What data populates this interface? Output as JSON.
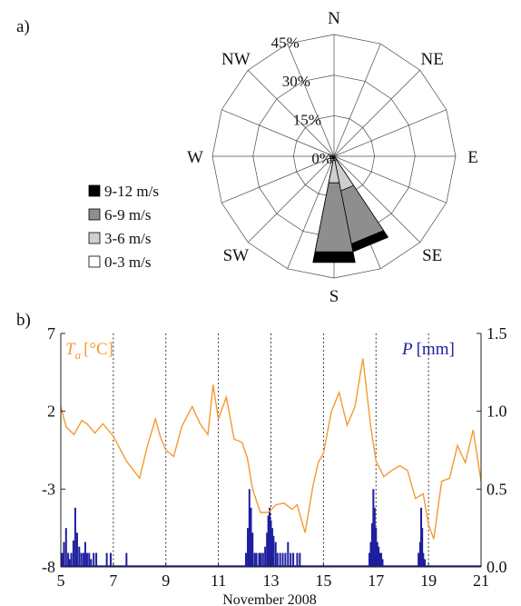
{
  "colors": {
    "temperature": "#F39A30",
    "precipitation": "#1E1E9E",
    "speed_0_3": "#FFFFFF",
    "speed_3_6": "#CFCFCF",
    "speed_6_9": "#8E8E8E",
    "speed_9_12": "#000000"
  },
  "chart_data": [
    {
      "type": "windrose",
      "panel_label": "a)",
      "directions": [
        "N",
        "NNE",
        "NE",
        "ENE",
        "E",
        "ESE",
        "SE",
        "SSE",
        "S",
        "SSW",
        "SW",
        "WSW",
        "W",
        "WNW",
        "NW",
        "NNW"
      ],
      "direction_labels": [
        {
          "dir": "N",
          "text": "N"
        },
        {
          "dir": "NE",
          "text": "NE"
        },
        {
          "dir": "E",
          "text": "E"
        },
        {
          "dir": "SE",
          "text": "SE"
        },
        {
          "dir": "S",
          "text": "S"
        },
        {
          "dir": "SW",
          "text": "SW"
        },
        {
          "dir": "W",
          "text": "W"
        },
        {
          "dir": "NW",
          "text": "NW"
        }
      ],
      "radial_max": 45,
      "radial_ticks": [
        {
          "value": 0,
          "label": "0%"
        },
        {
          "value": 15,
          "label": "15%"
        },
        {
          "value": 30,
          "label": "30%"
        },
        {
          "value": 45,
          "label": "45%"
        }
      ],
      "legend": [
        {
          "key": "speed_9_12",
          "label": "9-12 m/s"
        },
        {
          "key": "speed_6_9",
          "label": "6-9 m/s"
        },
        {
          "key": "speed_3_6",
          "label": "3-6 m/s"
        },
        {
          "key": "speed_0_3",
          "label": "0-3 m/s"
        }
      ],
      "series_cumulative_percent": {
        "speed_0_3": {
          "SSE": 1.5,
          "S": 1.5,
          "SW": 0.5,
          "WSW": 0.5,
          "W": 0.5
        },
        "speed_3_6": {
          "SSE": 13,
          "S": 10,
          "SW": 1,
          "WSW": 1.5,
          "W": 1.5
        },
        "speed_6_9": {
          "SSE": 33,
          "S": 36,
          "SW": 1,
          "WSW": 1.5,
          "W": 1.5
        },
        "speed_9_12": {
          "SSE": 36,
          "S": 40,
          "SW": 1,
          "WSW": 1.5,
          "W": 1.5
        }
      }
    },
    {
      "type": "line",
      "panel_label": "b)",
      "xlabel": "November 2008",
      "x_ticks": [
        5,
        7,
        9,
        11,
        13,
        15,
        17,
        19,
        21
      ],
      "x_range": [
        5,
        21
      ],
      "dotted_vlines": [
        7,
        9,
        11,
        13,
        15,
        17,
        19
      ],
      "y_left": {
        "label_symbol": "T",
        "label_sub": "a",
        "label_unit": "[°C]",
        "range": [
          -8,
          7
        ],
        "ticks": [
          7,
          2,
          -3,
          -8
        ],
        "tick_labels": [
          "7",
          "2",
          "-3",
          "-8"
        ]
      },
      "y_right": {
        "label_symbol": "P",
        "label_unit": "[mm]",
        "range": [
          0,
          1.5
        ],
        "ticks": [
          1.5,
          1.0,
          0.5,
          0.0
        ],
        "tick_labels": [
          "1.5",
          "1.0",
          "0.5",
          "0.0"
        ]
      },
      "series": [
        {
          "key": "temperature",
          "axis": "left",
          "x": [
            5.0,
            5.2,
            5.5,
            5.8,
            6.0,
            6.3,
            6.6,
            7.0,
            7.5,
            8.0,
            8.3,
            8.6,
            8.8,
            9.0,
            9.3,
            9.6,
            10.0,
            10.3,
            10.6,
            10.8,
            11.0,
            11.3,
            11.6,
            11.9,
            12.1,
            12.3,
            12.6,
            12.9,
            13.2,
            13.5,
            13.8,
            14.0,
            14.3,
            14.6,
            14.8,
            15.0,
            15.3,
            15.6,
            15.9,
            16.2,
            16.5,
            16.8,
            17.0,
            17.3,
            17.6,
            17.9,
            18.2,
            18.5,
            18.8,
            19.0,
            19.2,
            19.5,
            19.8,
            20.1,
            20.4,
            20.7,
            21.0
          ],
          "y": [
            2.3,
            1.0,
            0.5,
            1.4,
            1.2,
            0.6,
            1.2,
            0.4,
            -1.2,
            -2.3,
            -0.2,
            1.5,
            0.3,
            -0.5,
            -0.9,
            1.0,
            2.3,
            1.2,
            0.5,
            3.7,
            1.5,
            2.9,
            0.2,
            0.0,
            -1.0,
            -3.0,
            -4.5,
            -4.5,
            -4.0,
            -3.9,
            -4.3,
            -4.0,
            -5.8,
            -2.8,
            -1.3,
            -0.7,
            2.0,
            3.2,
            1.1,
            2.3,
            5.4,
            1.0,
            -1.2,
            -2.2,
            -1.8,
            -1.5,
            -1.8,
            -3.6,
            -3.3,
            -5.3,
            -6.2,
            -2.5,
            -2.3,
            -0.2,
            -1.3,
            0.8,
            -2.5
          ]
        },
        {
          "key": "precipitation",
          "axis": "right",
          "events": [
            {
              "x": 5.05,
              "v": 0.09
            },
            {
              "x": 5.12,
              "v": 0.16
            },
            {
              "x": 5.2,
              "v": 0.25
            },
            {
              "x": 5.28,
              "v": 0.09
            },
            {
              "x": 5.33,
              "v": 0.05
            },
            {
              "x": 5.4,
              "v": 0.09
            },
            {
              "x": 5.48,
              "v": 0.17
            },
            {
              "x": 5.55,
              "v": 0.38
            },
            {
              "x": 5.62,
              "v": 0.22
            },
            {
              "x": 5.7,
              "v": 0.13
            },
            {
              "x": 5.78,
              "v": 0.09
            },
            {
              "x": 5.86,
              "v": 0.09
            },
            {
              "x": 5.93,
              "v": 0.16
            },
            {
              "x": 6.0,
              "v": 0.09
            },
            {
              "x": 6.08,
              "v": 0.09
            },
            {
              "x": 6.15,
              "v": 0.05
            },
            {
              "x": 6.25,
              "v": 0.09
            },
            {
              "x": 6.35,
              "v": 0.09
            },
            {
              "x": 6.75,
              "v": 0.09
            },
            {
              "x": 6.9,
              "v": 0.09
            },
            {
              "x": 7.5,
              "v": 0.09
            },
            {
              "x": 12.05,
              "v": 0.09
            },
            {
              "x": 12.12,
              "v": 0.25
            },
            {
              "x": 12.18,
              "v": 0.5
            },
            {
              "x": 12.24,
              "v": 0.38
            },
            {
              "x": 12.3,
              "v": 0.22
            },
            {
              "x": 12.38,
              "v": 0.09
            },
            {
              "x": 12.45,
              "v": 0.09
            },
            {
              "x": 12.55,
              "v": 0.09
            },
            {
              "x": 12.62,
              "v": 0.09
            },
            {
              "x": 12.7,
              "v": 0.09
            },
            {
              "x": 12.78,
              "v": 0.13
            },
            {
              "x": 12.85,
              "v": 0.22
            },
            {
              "x": 12.9,
              "v": 0.33
            },
            {
              "x": 12.95,
              "v": 0.38
            },
            {
              "x": 13.0,
              "v": 0.3
            },
            {
              "x": 13.05,
              "v": 0.25
            },
            {
              "x": 13.1,
              "v": 0.2
            },
            {
              "x": 13.18,
              "v": 0.16
            },
            {
              "x": 13.25,
              "v": 0.09
            },
            {
              "x": 13.35,
              "v": 0.09
            },
            {
              "x": 13.45,
              "v": 0.09
            },
            {
              "x": 13.55,
              "v": 0.09
            },
            {
              "x": 13.65,
              "v": 0.16
            },
            {
              "x": 13.75,
              "v": 0.09
            },
            {
              "x": 13.85,
              "v": 0.09
            },
            {
              "x": 14.0,
              "v": 0.09
            },
            {
              "x": 14.1,
              "v": 0.09
            },
            {
              "x": 16.75,
              "v": 0.09
            },
            {
              "x": 16.8,
              "v": 0.16
            },
            {
              "x": 16.85,
              "v": 0.28
            },
            {
              "x": 16.9,
              "v": 0.5
            },
            {
              "x": 16.95,
              "v": 0.38
            },
            {
              "x": 17.0,
              "v": 0.25
            },
            {
              "x": 17.05,
              "v": 0.16
            },
            {
              "x": 17.1,
              "v": 0.13
            },
            {
              "x": 17.15,
              "v": 0.09
            },
            {
              "x": 17.2,
              "v": 0.09
            },
            {
              "x": 17.25,
              "v": 0.05
            },
            {
              "x": 18.62,
              "v": 0.09
            },
            {
              "x": 18.68,
              "v": 0.16
            },
            {
              "x": 18.72,
              "v": 0.38
            },
            {
              "x": 18.76,
              "v": 0.25
            },
            {
              "x": 18.8,
              "v": 0.09
            },
            {
              "x": 18.86,
              "v": 0.05
            }
          ]
        }
      ]
    }
  ]
}
